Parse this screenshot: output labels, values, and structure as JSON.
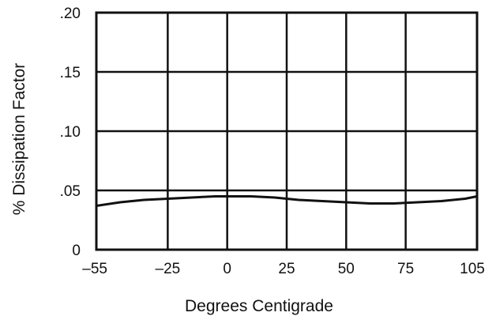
{
  "chart_data": {
    "type": "line",
    "title": "",
    "xlabel": "Degrees Centigrade",
    "ylabel": "% Dissipation Factor",
    "x_ticks": [
      -55,
      -25,
      0,
      25,
      50,
      75,
      105
    ],
    "x_tick_labels": [
      "–55",
      "–25",
      "0",
      "25",
      "50",
      "75",
      "105"
    ],
    "y_ticks": [
      0,
      0.05,
      0.1,
      0.15,
      0.2
    ],
    "y_tick_labels": [
      "0",
      ".05",
      ".10",
      ".15",
      ".20"
    ],
    "xlim": [
      -55,
      105
    ],
    "ylim": [
      0,
      0.2
    ],
    "grid": true,
    "series": [
      {
        "x": [
          -55,
          -45,
          -35,
          -25,
          -15,
          -5,
          0,
          10,
          20,
          30,
          40,
          50,
          60,
          70,
          80,
          90,
          100,
          105
        ],
        "y": [
          0.037,
          0.04,
          0.042,
          0.043,
          0.044,
          0.045,
          0.045,
          0.045,
          0.044,
          0.042,
          0.041,
          0.04,
          0.039,
          0.039,
          0.04,
          0.041,
          0.043,
          0.045
        ]
      }
    ],
    "colors": {
      "line": "#111111",
      "grid": "#111111"
    }
  }
}
